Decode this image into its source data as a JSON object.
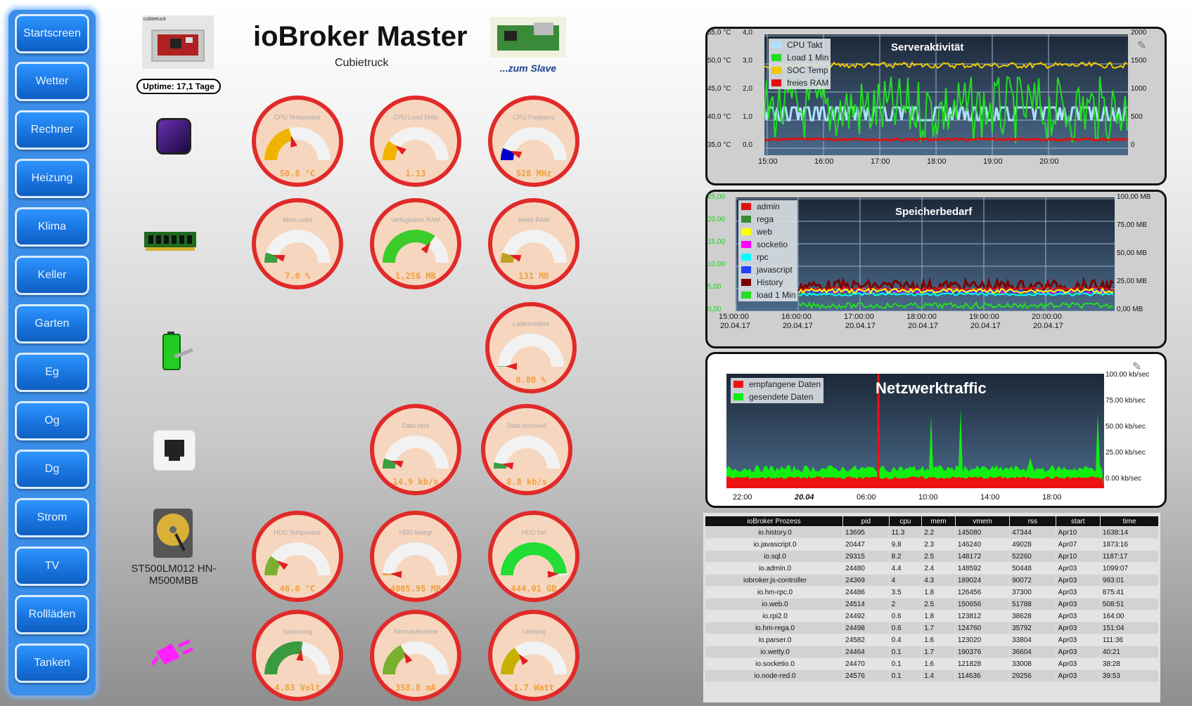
{
  "nav": {
    "items": [
      {
        "label": "Startscreen"
      },
      {
        "label": "Wetter"
      },
      {
        "label": "Rechner"
      },
      {
        "label": "Heizung"
      },
      {
        "label": "Klima"
      },
      {
        "label": "Keller"
      },
      {
        "label": "Garten"
      },
      {
        "label": "Eg"
      },
      {
        "label": "Og"
      },
      {
        "label": "Dg"
      },
      {
        "label": "Strom"
      },
      {
        "label": "TV"
      },
      {
        "label": "Rollläden"
      },
      {
        "label": "Tanken"
      }
    ]
  },
  "header": {
    "title": "ioBroker Master",
    "subtitle": "Cubietruck",
    "device_label": "cubietruck",
    "uptime": "Uptime: 17,1 Tage",
    "slave_link": "...zum Slave"
  },
  "hdd_label": "ST500LM012 HN-M500MBB",
  "gauges": {
    "cpu_temp": {
      "label": "CPU Temperatur",
      "value": "50.8 °C",
      "fill": 0.42,
      "color": "#f0b400"
    },
    "cpu_load": {
      "label": "CPU Load 5Min",
      "value": "1.13",
      "fill": 0.2,
      "color": "#f0b400"
    },
    "cpu_freq": {
      "label": "CPU Frequenz",
      "value": "528 MHz",
      "fill": 0.12,
      "color": "#0000cc"
    },
    "mem_used": {
      "label": "Mem used",
      "value": "7.0 %",
      "fill": 0.1,
      "color": "#3aa040"
    },
    "avail_ram": {
      "label": "verfügbares RAM",
      "value": "1,256 MB",
      "fill": 0.7,
      "color": "#3ccc2a"
    },
    "free_ram": {
      "label": "freies RAM",
      "value": "131 MB",
      "fill": 0.1,
      "color": "#c0a020"
    },
    "charge": {
      "label": "Ladezustand",
      "value": "0.00 %",
      "fill": 0.0,
      "color": "#3aa040"
    },
    "data_sent": {
      "label": "Data sent",
      "value": "14.9 kb/s",
      "fill": 0.1,
      "color": "#3aa040"
    },
    "data_recv": {
      "label": "Data received",
      "value": "8.8 kb/s",
      "fill": 0.06,
      "color": "#3aa040"
    },
    "hdd_temp": {
      "label": "HDD Temperatur",
      "value": "46.0 °C",
      "fill": 0.2,
      "color": "#7ab030"
    },
    "hdd_used": {
      "label": "HDD belegt",
      "value": "4005.95 MB",
      "fill": 0.02,
      "color": "#f0a040"
    },
    "hdd_free": {
      "label": "HDD frei",
      "value": "444.01 GB",
      "fill": 0.98,
      "color": "#22dd33"
    },
    "voltage": {
      "label": "Spannung",
      "value": "4.83 Volt",
      "fill": 0.55,
      "color": "#3a9a40"
    },
    "current": {
      "label": "Stromaufnahme",
      "value": "358.8 mA",
      "fill": 0.35,
      "color": "#7ab030"
    },
    "power": {
      "label": "Leistung",
      "value": "1.7 Watt",
      "fill": 0.3,
      "color": "#c8b000"
    }
  },
  "chart_data": [
    {
      "type": "line",
      "title": "Serveraktivität",
      "series": [
        {
          "name": "CPU Takt",
          "color": "#b0e0ff"
        },
        {
          "name": "Load 1 Min",
          "color": "#22dd22"
        },
        {
          "name": "SOC Temp",
          "color": "#f0c800"
        },
        {
          "name": "freies RAM",
          "color": "#e01010"
        }
      ],
      "x_ticks": [
        "15:00",
        "16:00",
        "17:00",
        "18:00",
        "19:00",
        "20:00"
      ],
      "y_left_temp": [
        "55,0 °C",
        "50,0 °C",
        "45,0 °C",
        "40,0 °C",
        "35,0 °C"
      ],
      "y_left_load": [
        "4,0",
        "3,0",
        "2,0",
        "1,0",
        "0,0"
      ],
      "y_right": [
        "2000",
        "1500",
        "1000",
        "500",
        "0"
      ]
    },
    {
      "type": "line",
      "title": "Speicherbedarf",
      "series": [
        {
          "name": "admin",
          "color": "#e01010"
        },
        {
          "name": "rega",
          "color": "#3a8a3a"
        },
        {
          "name": "web",
          "color": "#ffff00"
        },
        {
          "name": "socketio",
          "color": "#ff00ff"
        },
        {
          "name": "rpc",
          "color": "#00ffff"
        },
        {
          "name": "javascript",
          "color": "#2040ff"
        },
        {
          "name": "History",
          "color": "#7a0000"
        },
        {
          "name": "load 1 Min",
          "color": "#22dd22"
        }
      ],
      "x_ticks": [
        [
          "15:00:00",
          "20.04.17"
        ],
        [
          "16:00:00",
          "20.04.17"
        ],
        [
          "17:00:00",
          "20.04.17"
        ],
        [
          "18:00:00",
          "20.04.17"
        ],
        [
          "19:00:00",
          "20.04.17"
        ],
        [
          "20:00:00",
          "20.04.17"
        ]
      ],
      "y_left": [
        "25,00",
        "20,00",
        "15,00",
        "10,00",
        "5,00",
        "0,00"
      ],
      "y_right": [
        "100,00 MB",
        "75,00 MB",
        "50,00 MB",
        "25,00 MB",
        "0,00 MB"
      ]
    },
    {
      "type": "area",
      "title": "Netzwerktraffic",
      "series": [
        {
          "name": "empfangene Daten",
          "color": "#ee1111"
        },
        {
          "name": "gesendete Daten",
          "color": "#11ee11"
        }
      ],
      "x_ticks": [
        "22:00",
        "20.04",
        "06:00",
        "10:00",
        "14:00",
        "18:00"
      ],
      "y_right": [
        "100.00 kb/sec",
        "75.00 kb/sec",
        "50.00 kb/sec",
        "25.00 kb/sec",
        "0.00 kb/sec"
      ]
    }
  ],
  "process_table": {
    "headers": [
      "ioBroker Prozess",
      "pid",
      "cpu",
      "mem",
      "vmem",
      "rss",
      "start",
      "time"
    ],
    "rows": [
      [
        "io.history.0",
        "13695",
        "11.3",
        "2.2",
        "145080",
        "47344",
        "Apr10",
        "1638:14"
      ],
      [
        "io.javascript.0",
        "20447",
        "9.8",
        "2.3",
        "146240",
        "49028",
        "Apr07",
        "1873:16"
      ],
      [
        "io.sql.0",
        "29315",
        "8.2",
        "2.5",
        "148172",
        "52260",
        "Apr10",
        "1187:17"
      ],
      [
        "io.admin.0",
        "24480",
        "4.4",
        "2.4",
        "148592",
        "50448",
        "Apr03",
        "1099:07"
      ],
      [
        "iobroker.js-controller",
        "24369",
        "4",
        "4.3",
        "189024",
        "90072",
        "Apr03",
        "993:01"
      ],
      [
        "io.hm-rpc.0",
        "24486",
        "3.5",
        "1.8",
        "126456",
        "37300",
        "Apr03",
        "875:41"
      ],
      [
        "io.web.0",
        "24514",
        "2",
        "2.5",
        "150656",
        "51788",
        "Apr03",
        "508:51"
      ],
      [
        "io.rpi2.0",
        "24492",
        "0.6",
        "1.8",
        "123812",
        "38628",
        "Apr03",
        "164:00"
      ],
      [
        "io.hm-rega.0",
        "24498",
        "0.6",
        "1.7",
        "124760",
        "35792",
        "Apr03",
        "151:04"
      ],
      [
        "io.parser.0",
        "24582",
        "0.4",
        "1.6",
        "123020",
        "33804",
        "Apr03",
        "111:36"
      ],
      [
        "io.wetty.0",
        "24464",
        "0.1",
        "1.7",
        "190376",
        "36604",
        "Apr03",
        "40:21"
      ],
      [
        "io.socketio.0",
        "24470",
        "0.1",
        "1.6",
        "121828",
        "33008",
        "Apr03",
        "38:28"
      ],
      [
        "io.node-red.0",
        "24576",
        "0.1",
        "1.4",
        "114636",
        "29256",
        "Apr03",
        "39:53"
      ]
    ]
  }
}
